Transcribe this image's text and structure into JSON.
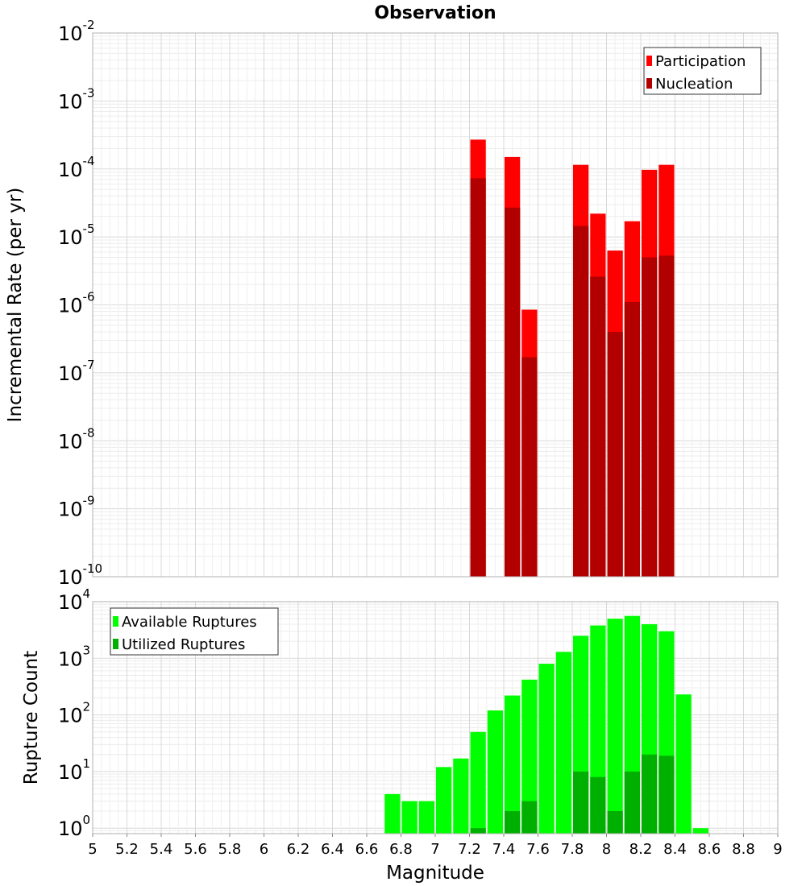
{
  "chart_data": [
    {
      "type": "bar",
      "title": "Observation",
      "ylabel": "Incremental Rate (per yr)",
      "xlabel": "",
      "yscale": "log",
      "ylim": [
        1e-10,
        0.01
      ],
      "xlim": [
        5,
        9
      ],
      "bar_width": 0.1,
      "y_tick_exponents": [
        "-10",
        "-9",
        "-8",
        "-7",
        "-6",
        "-5",
        "-4",
        "-3",
        "-2"
      ],
      "legend_position": "top-right",
      "grid": true,
      "x": [
        7.25,
        7.45,
        7.55,
        7.85,
        7.95,
        8.05,
        8.15,
        8.25,
        8.35
      ],
      "series": [
        {
          "name": "Participation",
          "color": "#ff0000",
          "values": [
            0.00027,
            0.00015,
            8.5e-07,
            0.000115,
            2.2e-05,
            6.3e-06,
            1.7e-05,
            9.7e-05,
            0.000115
          ]
        },
        {
          "name": "Nucleation",
          "color": "#b20000",
          "values": [
            7.3e-05,
            2.7e-05,
            1.7e-07,
            1.45e-05,
            2.6e-06,
            4e-07,
            1.1e-06,
            5e-06,
            5.3e-06
          ]
        }
      ]
    },
    {
      "type": "bar",
      "title": "",
      "ylabel": "Rupture Count",
      "xlabel": "Magnitude",
      "yscale": "log",
      "ylim": [
        0.8,
        10000
      ],
      "xlim": [
        5,
        9
      ],
      "bar_width": 0.1,
      "y_tick_exponents": [
        "0",
        "1",
        "2",
        "3",
        "4"
      ],
      "x_ticks": [
        "5",
        "5.2",
        "5.4",
        "5.6",
        "5.8",
        "6",
        "6.2",
        "6.4",
        "6.6",
        "6.8",
        "7",
        "7.2",
        "7.4",
        "7.6",
        "7.8",
        "8",
        "8.2",
        "8.4",
        "8.6",
        "8.8",
        "9"
      ],
      "legend_position": "top-left",
      "grid": true,
      "x": [
        6.75,
        6.85,
        6.95,
        7.05,
        7.15,
        7.25,
        7.35,
        7.45,
        7.55,
        7.65,
        7.75,
        7.85,
        7.95,
        8.05,
        8.15,
        8.25,
        8.35,
        8.45,
        8.55
      ],
      "series": [
        {
          "name": "Available Ruptures",
          "color": "#00ff00",
          "values": [
            4,
            3,
            3,
            12,
            17,
            50,
            120,
            220,
            420,
            800,
            1300,
            2500,
            3800,
            5000,
            5600,
            4000,
            3000,
            230,
            1
          ]
        },
        {
          "name": "Utilized Ruptures",
          "color": "#00b000",
          "values": [
            0,
            0,
            0,
            0,
            0,
            1,
            0,
            2,
            3,
            0,
            0,
            10,
            8,
            2,
            10,
            20,
            19,
            0,
            0
          ]
        }
      ]
    }
  ]
}
